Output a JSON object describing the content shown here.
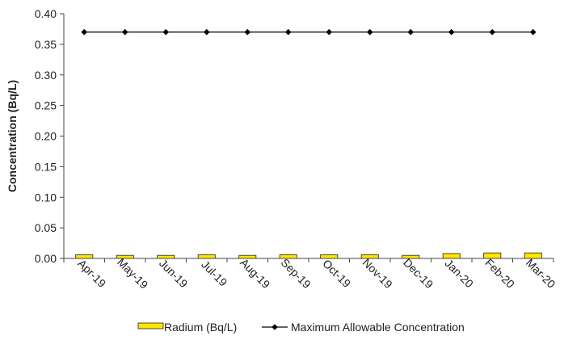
{
  "chart_data": {
    "type": "bar",
    "categories": [
      "Apr-19",
      "May-19",
      "Jun-19",
      "Jul-19",
      "Aug-19",
      "Sep-19",
      "Oct-19",
      "Nov-19",
      "Dec-19",
      "Jan-20",
      "Feb-20",
      "Mar-20"
    ],
    "series": [
      {
        "name": "Radium (Bq/L)",
        "type": "bar",
        "color": "#FFE600",
        "values": [
          0.006,
          0.005,
          0.005,
          0.006,
          0.005,
          0.006,
          0.006,
          0.006,
          0.005,
          0.008,
          0.009,
          0.009
        ]
      },
      {
        "name": "Maximum Allowable Concentration",
        "type": "line",
        "color": "#000000",
        "marker": "diamond",
        "values": [
          0.37,
          0.37,
          0.37,
          0.37,
          0.37,
          0.37,
          0.37,
          0.37,
          0.37,
          0.37,
          0.37,
          0.37
        ]
      }
    ],
    "title": "",
    "xlabel": "",
    "ylabel": "Concentration (Bq/L)",
    "ylim": [
      0,
      0.4
    ],
    "yticks": [
      "0.00",
      "0.05",
      "0.10",
      "0.15",
      "0.20",
      "0.25",
      "0.30",
      "0.35",
      "0.40"
    ],
    "grid": false,
    "legend_position": "bottom"
  }
}
